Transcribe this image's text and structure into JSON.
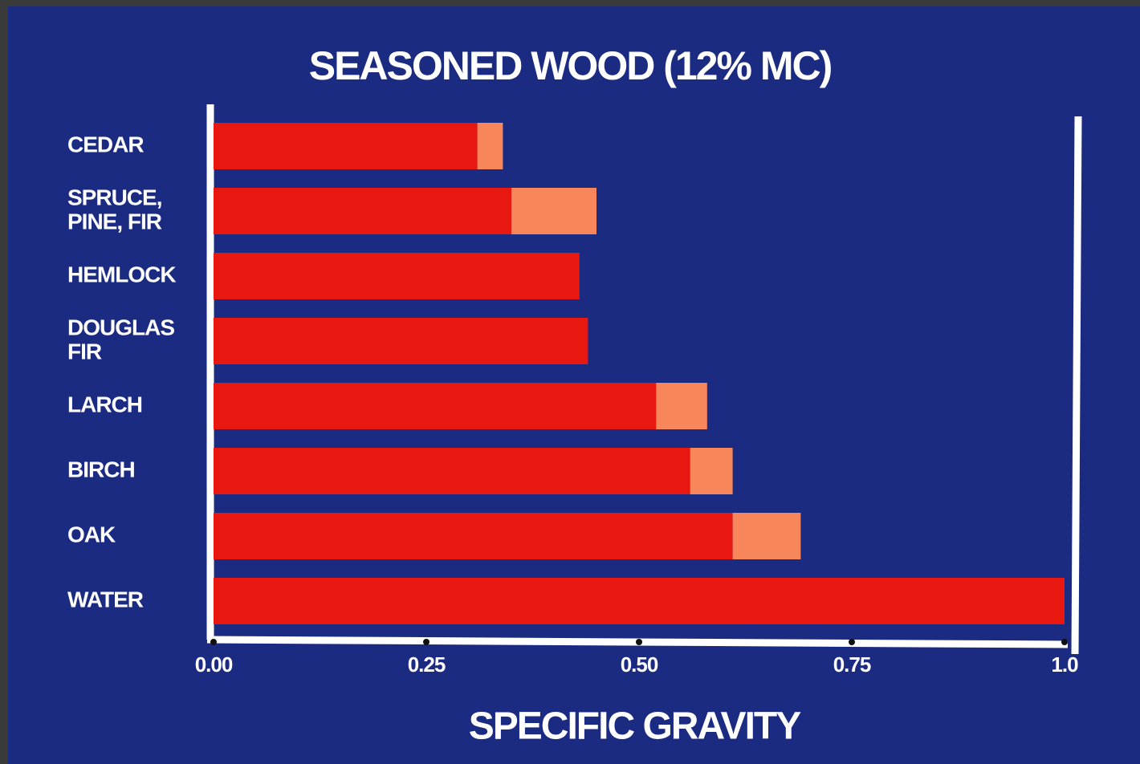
{
  "chart_data": {
    "type": "bar",
    "orientation": "horizontal",
    "stacked": true,
    "title": "SEASONED WOOD (12% MC)",
    "x_label": "SPECIFIC GRAVITY",
    "categories": [
      [
        "CEDAR"
      ],
      [
        "SPRUCE,",
        "PINE, FIR"
      ],
      [
        "HEMLOCK"
      ],
      [
        "DOUGLAS",
        "FIR"
      ],
      [
        "LARCH"
      ],
      [
        "BIRCH"
      ],
      [
        "OAK"
      ],
      [
        "WATER"
      ]
    ],
    "series": [
      {
        "color": "#e8170f",
        "values": [
          0.31,
          0.35,
          0.43,
          0.44,
          0.52,
          0.56,
          0.61,
          1.0
        ]
      },
      {
        "color": "#f7875a",
        "values": [
          0.03,
          0.1,
          0,
          0,
          0.06,
          0.05,
          0.08,
          0
        ]
      }
    ],
    "xlim": [
      0,
      1
    ],
    "xticks": [
      {
        "value": 0,
        "label": "0.00"
      },
      0.25,
      {
        "value": 0.5,
        "label": "0.50"
      },
      0.75,
      {
        "value": 1,
        "label": "1.0"
      }
    ],
    "background": "#1c2b82"
  }
}
